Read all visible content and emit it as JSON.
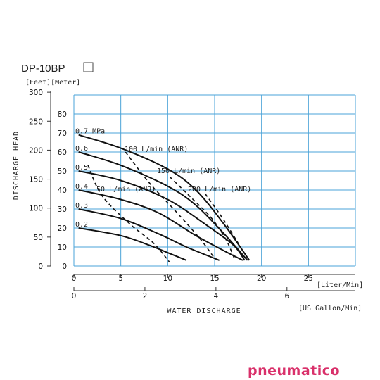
{
  "chart_data": {
    "type": "line",
    "title": "DP-10BP",
    "title_box_icon": "empty-square-icon",
    "unit_header": "[Feet][Meter]",
    "ylabel": "DISCHARGE HEAD",
    "xlabel": "WATER DISCHARGE",
    "x_unit_primary": "[Liter/Min]",
    "x_unit_secondary": "[US Gallon/Min]",
    "x_ticks_lpm": [
      0,
      5,
      10,
      15,
      20,
      25
    ],
    "x_ticks_gpm": [
      0,
      2,
      4,
      6
    ],
    "y_ticks_m": [
      0,
      10,
      20,
      30,
      40,
      50,
      60,
      70,
      80
    ],
    "y_ticks_ft": [
      0,
      50,
      100,
      150,
      200,
      250,
      300
    ],
    "xlim_lpm": [
      0,
      30
    ],
    "ylim_m": [
      0,
      80
    ],
    "grid_color": "#4aa3d8",
    "series": [
      {
        "name": "0.7 MPa",
        "points": [
          [
            0.5,
            69
          ],
          [
            5,
            62
          ],
          [
            10,
            51
          ],
          [
            13,
            40
          ],
          [
            16,
            22
          ],
          [
            18.7,
            3
          ]
        ]
      },
      {
        "name": "0.6",
        "points": [
          [
            0.5,
            60
          ],
          [
            5,
            53
          ],
          [
            10,
            42
          ],
          [
            13,
            32
          ],
          [
            16,
            17
          ],
          [
            18.5,
            3
          ]
        ]
      },
      {
        "name": "0.5",
        "points": [
          [
            0.5,
            50
          ],
          [
            5,
            45
          ],
          [
            10,
            35
          ],
          [
            14,
            22
          ],
          [
            17,
            11
          ],
          [
            18.2,
            3
          ]
        ]
      },
      {
        "name": "0.4",
        "points": [
          [
            0.5,
            40
          ],
          [
            5,
            35
          ],
          [
            9,
            28
          ],
          [
            13,
            16
          ],
          [
            16,
            8
          ],
          [
            18,
            3
          ]
        ]
      },
      {
        "name": "0.3",
        "points": [
          [
            0.5,
            30
          ],
          [
            5,
            25
          ],
          [
            9,
            17
          ],
          [
            12,
            10
          ],
          [
            14.5,
            5
          ],
          [
            15.5,
            3
          ]
        ]
      },
      {
        "name": "0.2",
        "points": [
          [
            0.5,
            20
          ],
          [
            5,
            16
          ],
          [
            8,
            11
          ],
          [
            10,
            7
          ],
          [
            12,
            3
          ]
        ]
      }
    ],
    "air_curves": [
      {
        "name": "50 L/min (ANR)",
        "points": [
          [
            1.5,
            53
          ],
          [
            3,
            37
          ],
          [
            6,
            22
          ],
          [
            8.5,
            12
          ],
          [
            10.2,
            2
          ]
        ]
      },
      {
        "name": "100 L/min (ANR)",
        "points": [
          [
            5.5,
            60
          ],
          [
            8,
            44
          ],
          [
            11,
            28
          ],
          [
            13.5,
            14
          ],
          [
            15,
            4
          ]
        ]
      },
      {
        "name": "150 L/min (ANR)",
        "points": [
          [
            10.2,
            47
          ],
          [
            12.5,
            36
          ],
          [
            14.7,
            25
          ],
          [
            16.2,
            14
          ],
          [
            17.1,
            4
          ]
        ]
      },
      {
        "name": "200 L/min (ANR)",
        "points": [
          [
            14,
            38
          ],
          [
            16,
            24
          ],
          [
            18,
            8
          ]
        ]
      }
    ]
  },
  "brand": "pneumatico",
  "brand_color": "#d9306a"
}
